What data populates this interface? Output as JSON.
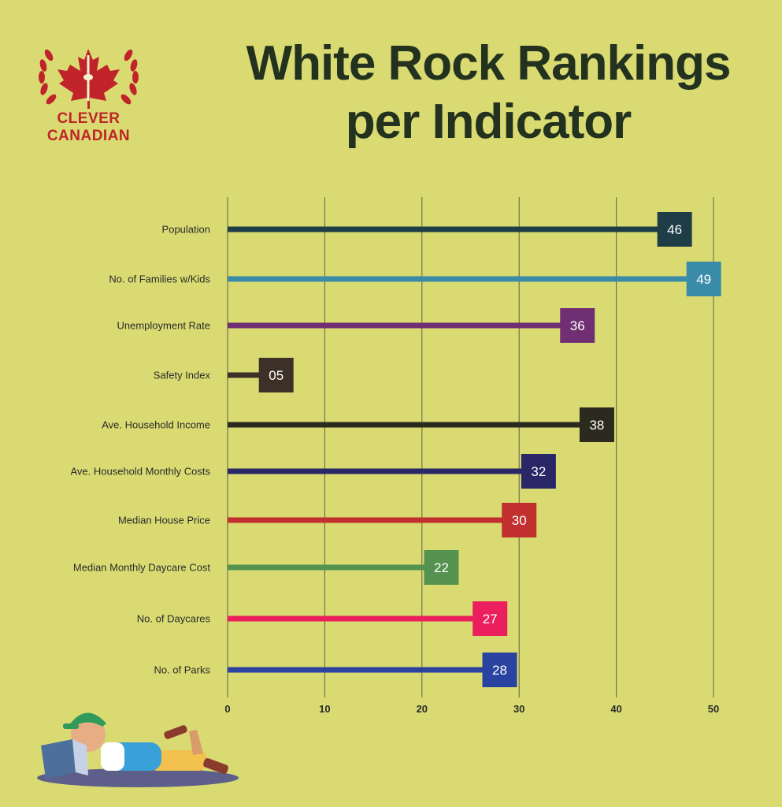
{
  "logo": {
    "line1": "CLEVER",
    "line2": "CANADIAN"
  },
  "chart_data": {
    "type": "bar",
    "title": "White Rock Rankings per Indicator",
    "title_lines": [
      "White Rock Rankings",
      "per Indicator"
    ],
    "categories": [
      "Population",
      "No. of Families w/Kids",
      "Unemployment Rate",
      "Safety Index",
      "Ave. Household Income",
      "Ave. Household Monthly Costs",
      "Median House Price",
      "Median Monthly Daycare Cost",
      "No. of Daycares",
      "No. of Parks"
    ],
    "values": [
      46,
      49,
      36,
      5,
      38,
      32,
      30,
      22,
      27,
      28
    ],
    "value_labels": [
      "46",
      "49",
      "36",
      "05",
      "38",
      "32",
      "30",
      "22",
      "27",
      "28"
    ],
    "colors": [
      "#1f3d47",
      "#3a8ba8",
      "#6f2f72",
      "#3d3127",
      "#2b2a1f",
      "#2a2766",
      "#c12f2f",
      "#55924f",
      "#ec1f5e",
      "#2a43a0"
    ],
    "x_ticks": [
      0,
      10,
      20,
      30,
      40,
      50
    ],
    "xlim": [
      0,
      50
    ],
    "grid": true,
    "xlabel": "",
    "ylabel": ""
  }
}
